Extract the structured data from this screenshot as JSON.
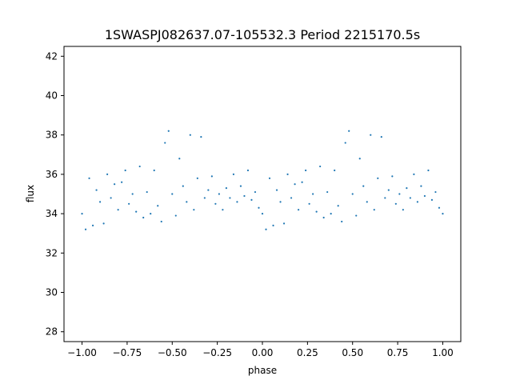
{
  "chart_data": {
    "type": "scatter",
    "title": "1SWASPJ082637.07-105532.3 Period 2215170.5s",
    "xlabel": "phase",
    "ylabel": "flux",
    "xlim": [
      -1.1,
      1.1
    ],
    "ylim": [
      27.5,
      42.5
    ],
    "xticks": [
      -1.0,
      -0.75,
      -0.5,
      -0.25,
      0.0,
      0.25,
      0.5,
      0.75,
      1.0
    ],
    "xtick_labels": [
      "−1.00",
      "−0.75",
      "−0.50",
      "−0.25",
      "0.00",
      "0.25",
      "0.50",
      "0.75",
      "1.00"
    ],
    "yticks": [
      28,
      30,
      32,
      34,
      36,
      38,
      40,
      42
    ],
    "ytick_labels": [
      "28",
      "30",
      "32",
      "34",
      "36",
      "38",
      "40",
      "42"
    ],
    "marker_color": "#1f77b4",
    "grid": false,
    "series": [
      {
        "description_points": "phase-folded light curve, duplicated over phase -1..1; representative (phase, flux) samples",
        "points": [
          [
            -1.0,
            34.0
          ],
          [
            -0.98,
            33.2
          ],
          [
            -0.96,
            35.8
          ],
          [
            -0.94,
            33.4
          ],
          [
            -0.92,
            35.2
          ],
          [
            -0.9,
            34.6
          ],
          [
            -0.88,
            33.5
          ],
          [
            -0.86,
            36.0
          ],
          [
            -0.84,
            34.8
          ],
          [
            -0.82,
            35.5
          ],
          [
            -0.8,
            34.2
          ],
          [
            -0.78,
            35.6
          ],
          [
            -0.76,
            36.2
          ],
          [
            -0.74,
            34.5
          ],
          [
            -0.72,
            35.0
          ],
          [
            -0.7,
            34.1
          ],
          [
            -0.68,
            36.4
          ],
          [
            -0.66,
            33.8
          ],
          [
            -0.64,
            35.1
          ],
          [
            -0.62,
            34.0
          ],
          [
            -0.6,
            36.2
          ],
          [
            -0.58,
            34.4
          ],
          [
            -0.56,
            33.6
          ],
          [
            -0.54,
            37.6
          ],
          [
            -0.52,
            38.2
          ],
          [
            -0.5,
            35.0
          ],
          [
            -0.48,
            33.9
          ],
          [
            -0.46,
            36.8
          ],
          [
            -0.44,
            35.4
          ],
          [
            -0.42,
            34.6
          ],
          [
            -0.4,
            38.0
          ],
          [
            -0.38,
            34.2
          ],
          [
            -0.36,
            35.8
          ],
          [
            -0.34,
            37.9
          ],
          [
            -0.32,
            34.8
          ],
          [
            -0.3,
            35.2
          ],
          [
            -0.28,
            35.9
          ],
          [
            -0.26,
            34.5
          ],
          [
            -0.24,
            35.0
          ],
          [
            -0.22,
            34.2
          ],
          [
            -0.2,
            35.3
          ],
          [
            -0.18,
            34.8
          ],
          [
            -0.16,
            36.0
          ],
          [
            -0.14,
            34.6
          ],
          [
            -0.12,
            35.4
          ],
          [
            -0.1,
            34.9
          ],
          [
            -0.08,
            36.2
          ],
          [
            -0.06,
            34.7
          ],
          [
            -0.04,
            35.1
          ],
          [
            -0.02,
            34.3
          ],
          [
            0.0,
            34.0
          ],
          [
            0.02,
            33.2
          ],
          [
            0.04,
            35.8
          ],
          [
            0.06,
            33.4
          ],
          [
            0.08,
            35.2
          ],
          [
            0.1,
            34.6
          ],
          [
            0.12,
            33.5
          ],
          [
            0.14,
            36.0
          ],
          [
            0.16,
            34.8
          ],
          [
            0.18,
            35.5
          ],
          [
            0.2,
            34.2
          ],
          [
            0.22,
            35.6
          ],
          [
            0.24,
            36.2
          ],
          [
            0.26,
            34.5
          ],
          [
            0.28,
            35.0
          ],
          [
            0.3,
            34.1
          ],
          [
            0.32,
            36.4
          ],
          [
            0.34,
            33.8
          ],
          [
            0.36,
            35.1
          ],
          [
            0.38,
            34.0
          ],
          [
            0.4,
            36.2
          ],
          [
            0.42,
            34.4
          ],
          [
            0.44,
            33.6
          ],
          [
            0.46,
            37.6
          ],
          [
            0.48,
            38.2
          ],
          [
            0.5,
            35.0
          ],
          [
            0.52,
            33.9
          ],
          [
            0.54,
            36.8
          ],
          [
            0.56,
            35.4
          ],
          [
            0.58,
            34.6
          ],
          [
            0.6,
            38.0
          ],
          [
            0.62,
            34.2
          ],
          [
            0.64,
            35.8
          ],
          [
            0.66,
            37.9
          ],
          [
            0.68,
            34.8
          ],
          [
            0.7,
            35.2
          ],
          [
            0.72,
            35.9
          ],
          [
            0.74,
            34.5
          ],
          [
            0.76,
            35.0
          ],
          [
            0.78,
            34.2
          ],
          [
            0.8,
            35.3
          ],
          [
            0.82,
            34.8
          ],
          [
            0.84,
            36.0
          ],
          [
            0.86,
            34.6
          ],
          [
            0.88,
            35.4
          ],
          [
            0.9,
            34.9
          ],
          [
            0.92,
            36.2
          ],
          [
            0.94,
            34.7
          ],
          [
            0.96,
            35.1
          ],
          [
            0.98,
            34.3
          ],
          [
            1.0,
            34.0
          ]
        ]
      }
    ]
  }
}
